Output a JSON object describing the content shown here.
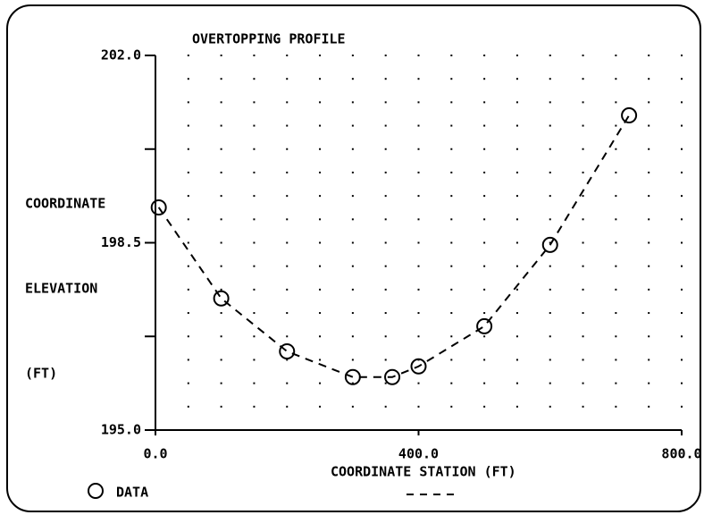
{
  "chart_data": {
    "type": "scatter-line",
    "title": "OVERTOPPING PROFILE",
    "y_label": [
      "COORDINATE",
      "ELEVATION",
      "(FT)"
    ],
    "x_label": "COORDINATE STATION    (FT)",
    "series": [
      {
        "name": "DATA",
        "color": "#000000",
        "x": [
          5,
          100,
          200,
          300,
          360,
          400,
          500,
          600,
          720
        ],
        "values": [
          199.16,
          197.46,
          196.47,
          195.99,
          195.99,
          196.19,
          196.94,
          198.46,
          200.88
        ]
      }
    ],
    "xlim": [
      0,
      800
    ],
    "xticks": [
      {
        "value": 0,
        "label": "0.0"
      },
      {
        "value": 400,
        "label": "400.0"
      },
      {
        "value": 800,
        "label": "800.0"
      }
    ],
    "ylim": [
      195,
      202
    ],
    "yticks": [
      {
        "value": 195,
        "label": "195.0"
      },
      {
        "value": 198.5,
        "label": "198.5"
      },
      {
        "value": 202,
        "label": "202.0"
      }
    ],
    "yminor_ticks": [
      196.75,
      200.25
    ],
    "grid": "dotted",
    "legend": "bottom-left"
  }
}
